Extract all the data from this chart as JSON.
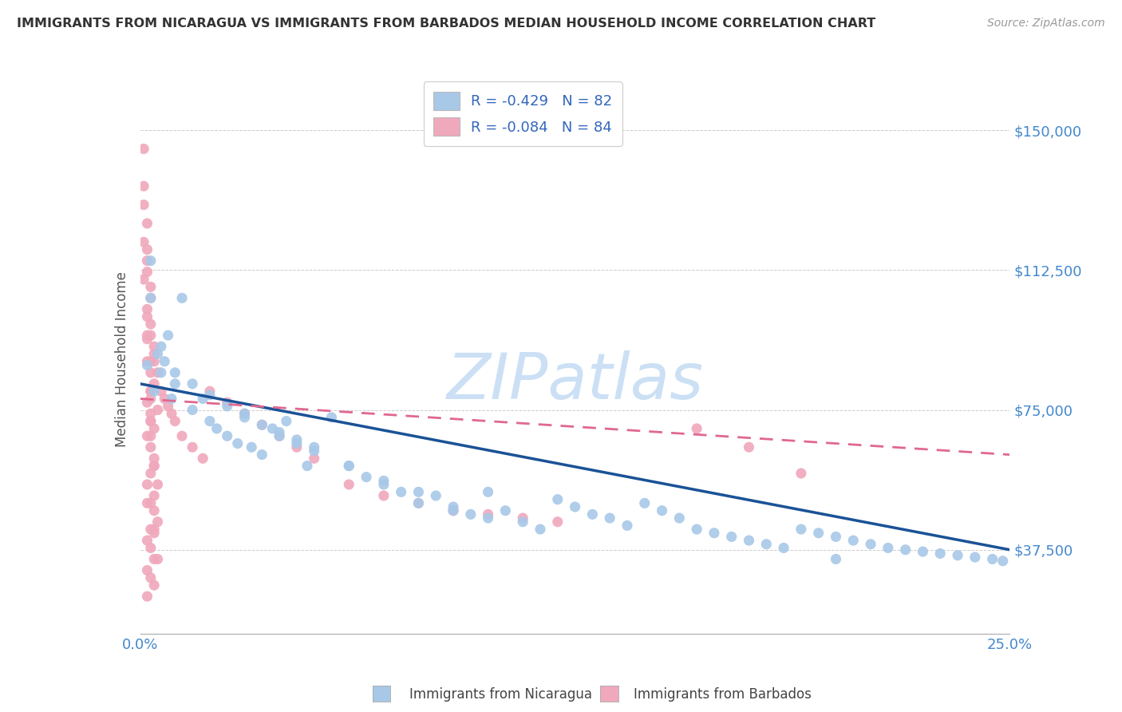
{
  "title": "IMMIGRANTS FROM NICARAGUA VS IMMIGRANTS FROM BARBADOS MEDIAN HOUSEHOLD INCOME CORRELATION CHART",
  "source": "Source: ZipAtlas.com",
  "ylabel": "Median Household Income",
  "yticks": [
    37500,
    75000,
    112500,
    150000
  ],
  "ytick_labels": [
    "$37,500",
    "$75,000",
    "$112,500",
    "$150,000"
  ],
  "xmin": 0.0,
  "xmax": 0.25,
  "ymin": 15000,
  "ymax": 162000,
  "legend_r1": "R = -0.429",
  "legend_n1": "N = 82",
  "legend_r2": "R = -0.084",
  "legend_n2": "N = 84",
  "color_nicaragua": "#a8c8e8",
  "color_barbados": "#f0a8bc",
  "line_color_nicaragua": "#1a5296",
  "line_color_barbados": "#e06890",
  "watermark": "ZIPatlas",
  "watermark_color": "#cce0f5",
  "nic_line_x0": 0.0,
  "nic_line_y0": 82000,
  "nic_line_x1": 0.25,
  "nic_line_y1": 37500,
  "bar_line_x0": 0.0,
  "bar_line_y0": 78000,
  "bar_line_x1": 0.25,
  "bar_line_y1": 63000,
  "scatter_nicaragua_x": [
    0.005,
    0.003,
    0.008,
    0.002,
    0.006,
    0.004,
    0.007,
    0.009,
    0.01,
    0.012,
    0.015,
    0.018,
    0.02,
    0.022,
    0.025,
    0.028,
    0.03,
    0.032,
    0.035,
    0.038,
    0.04,
    0.042,
    0.045,
    0.048,
    0.05,
    0.055,
    0.06,
    0.065,
    0.07,
    0.075,
    0.08,
    0.085,
    0.09,
    0.095,
    0.1,
    0.105,
    0.11,
    0.115,
    0.12,
    0.125,
    0.13,
    0.135,
    0.14,
    0.145,
    0.15,
    0.155,
    0.16,
    0.165,
    0.17,
    0.175,
    0.18,
    0.185,
    0.19,
    0.195,
    0.2,
    0.205,
    0.21,
    0.215,
    0.22,
    0.225,
    0.23,
    0.235,
    0.24,
    0.245,
    0.248,
    0.003,
    0.006,
    0.01,
    0.015,
    0.02,
    0.025,
    0.03,
    0.035,
    0.04,
    0.045,
    0.05,
    0.06,
    0.07,
    0.08,
    0.09,
    0.1,
    0.2
  ],
  "scatter_nicaragua_y": [
    90000,
    115000,
    95000,
    87000,
    85000,
    80000,
    88000,
    78000,
    82000,
    105000,
    75000,
    78000,
    72000,
    70000,
    68000,
    66000,
    73000,
    65000,
    63000,
    70000,
    68000,
    72000,
    67000,
    60000,
    65000,
    73000,
    60000,
    57000,
    55000,
    53000,
    50000,
    52000,
    48000,
    47000,
    53000,
    48000,
    45000,
    43000,
    51000,
    49000,
    47000,
    46000,
    44000,
    50000,
    48000,
    46000,
    43000,
    42000,
    41000,
    40000,
    39000,
    38000,
    43000,
    42000,
    41000,
    40000,
    39000,
    38000,
    37500,
    37000,
    36500,
    36000,
    35500,
    35000,
    34500,
    105000,
    92000,
    85000,
    82000,
    79000,
    76000,
    74000,
    71000,
    69000,
    66000,
    64000,
    60000,
    56000,
    53000,
    49000,
    46000,
    35000
  ],
  "scatter_barbados_x": [
    0.002,
    0.001,
    0.003,
    0.002,
    0.004,
    0.001,
    0.003,
    0.005,
    0.002,
    0.004,
    0.003,
    0.001,
    0.002,
    0.004,
    0.003,
    0.005,
    0.002,
    0.003,
    0.004,
    0.001,
    0.002,
    0.003,
    0.004,
    0.002,
    0.003,
    0.001,
    0.004,
    0.003,
    0.002,
    0.005,
    0.003,
    0.004,
    0.002,
    0.003,
    0.004,
    0.002,
    0.003,
    0.005,
    0.004,
    0.003,
    0.002,
    0.004,
    0.003,
    0.002,
    0.003,
    0.004,
    0.002,
    0.003,
    0.004,
    0.002,
    0.006,
    0.007,
    0.008,
    0.009,
    0.01,
    0.012,
    0.015,
    0.018,
    0.02,
    0.025,
    0.03,
    0.035,
    0.04,
    0.045,
    0.05,
    0.06,
    0.07,
    0.08,
    0.09,
    0.1,
    0.11,
    0.12,
    0.16,
    0.175,
    0.19,
    0.003,
    0.004,
    0.003,
    0.003,
    0.004,
    0.002,
    0.002,
    0.003,
    0.005
  ],
  "scatter_barbados_y": [
    100000,
    120000,
    105000,
    95000,
    92000,
    110000,
    88000,
    85000,
    115000,
    90000,
    78000,
    130000,
    125000,
    82000,
    80000,
    75000,
    118000,
    72000,
    70000,
    145000,
    68000,
    65000,
    62000,
    112000,
    108000,
    135000,
    60000,
    58000,
    102000,
    55000,
    98000,
    52000,
    94000,
    50000,
    48000,
    88000,
    85000,
    45000,
    43000,
    80000,
    77000,
    42000,
    74000,
    40000,
    38000,
    35000,
    32000,
    30000,
    28000,
    25000,
    80000,
    78000,
    76000,
    74000,
    72000,
    68000,
    65000,
    62000,
    80000,
    77000,
    74000,
    71000,
    68000,
    65000,
    62000,
    55000,
    52000,
    50000,
    48000,
    47000,
    46000,
    45000,
    70000,
    65000,
    58000,
    95000,
    88000,
    72000,
    68000,
    60000,
    55000,
    50000,
    43000,
    35000
  ]
}
